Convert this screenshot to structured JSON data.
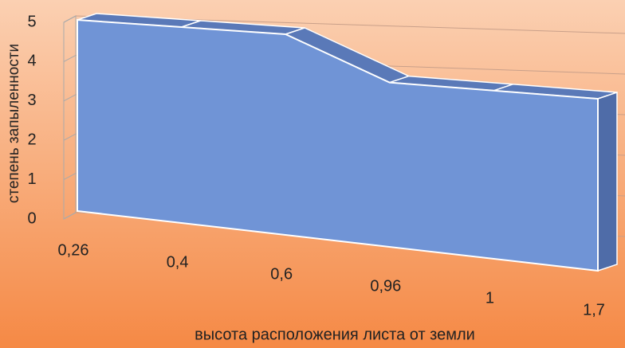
{
  "chart_data": {
    "type": "area3d",
    "categories": [
      "0,26",
      "0,4",
      "0,6",
      "0,96",
      "1",
      "1,7"
    ],
    "values": [
      5,
      5,
      5,
      4,
      4,
      4
    ],
    "color": "#7094d6",
    "ylim": [
      0,
      5
    ],
    "yticks": [
      0,
      1,
      2,
      3,
      4,
      5
    ],
    "grid": true,
    "xlabel": "высота расположения листа от земли",
    "ylabel": "степень запыленности"
  }
}
